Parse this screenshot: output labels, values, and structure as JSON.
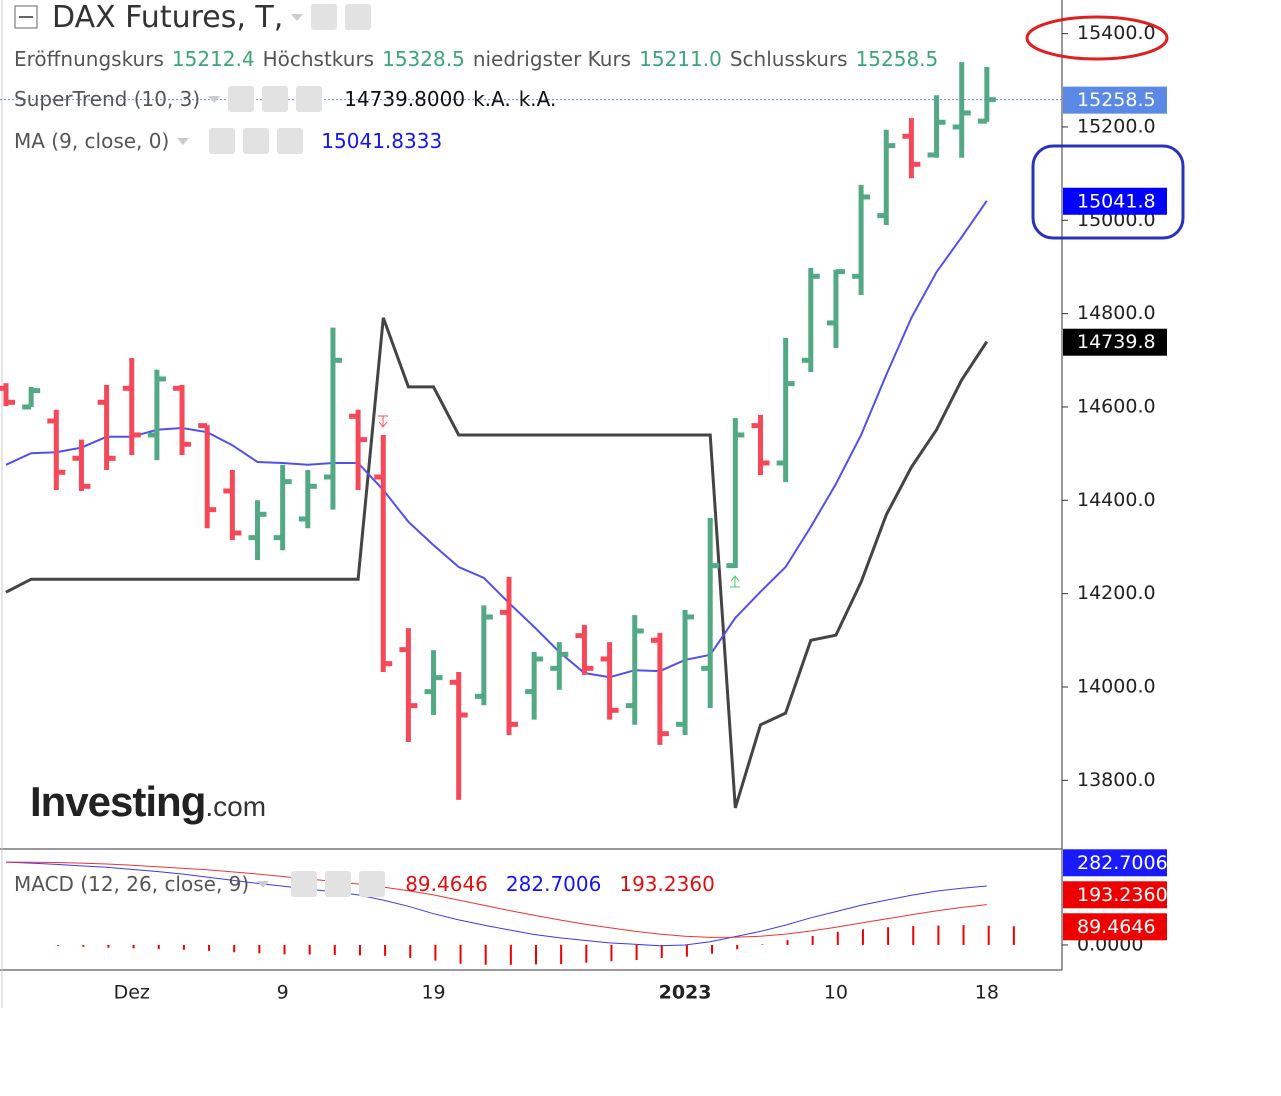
{
  "header": {
    "title": "DAX Futures, T,"
  },
  "watermark": [
    "Investing",
    ".com"
  ],
  "chart_data": [
    {
      "type": "ohlc",
      "categories": [
        null,
        null,
        null,
        null,
        null,
        "Dez",
        null,
        null,
        null,
        null,
        null,
        "9",
        null,
        null,
        null,
        null,
        null,
        "19",
        null,
        null,
        null,
        null,
        null,
        null,
        null,
        null,
        null,
        "2023",
        null,
        null,
        null,
        null,
        null,
        "10",
        null,
        null,
        null,
        null,
        null,
        "18"
      ],
      "ohlc_labels": [
        "Eröffnungskurs",
        "Höchstkurs",
        "niedrigster Kurs",
        "Schlusskurs"
      ],
      "open": [
        14640,
        14600,
        14570,
        14490,
        14610,
        14640,
        14540,
        14640,
        14560,
        14420,
        14320,
        14320,
        14360,
        14450,
        14580,
        14450,
        14080,
        13990,
        14010,
        13980,
        14160,
        13990,
        14040,
        14110,
        14060,
        13960,
        14100,
        13920,
        14040,
        14260,
        14560,
        14480,
        14700,
        14780,
        14880,
        15010,
        15180,
        15140,
        15200,
        15212.4
      ],
      "high": [
        14651,
        14643,
        14594,
        14530,
        14647,
        14705,
        14680,
        14647,
        14561,
        14465,
        14400,
        14476,
        14465,
        14770,
        14594,
        14540,
        14126,
        14079,
        14032,
        14175,
        14236,
        14075,
        14096,
        14133,
        14096,
        14154,
        14116,
        14165,
        14362,
        14576,
        14583,
        14748,
        14898,
        14894,
        15076,
        15194,
        15219,
        15268,
        15339,
        15328.5
      ],
      "low": [
        14602,
        14600,
        14422,
        14420,
        14465,
        14497,
        14486,
        14497,
        14340,
        14315,
        14272,
        14293,
        14340,
        14380,
        14422,
        14032,
        13882,
        13940,
        13758,
        13961,
        13897,
        13930,
        13994,
        14026,
        13930,
        13919,
        13876,
        13897,
        13955,
        14255,
        14454,
        14439,
        14675,
        14726,
        14840,
        14990,
        15090,
        15134,
        15134,
        15211.0
      ],
      "low_value_label": "15211.0",
      "close": [
        14610,
        14635,
        14460,
        14430,
        14490,
        14540,
        14660,
        14520,
        14380,
        14330,
        14370,
        14440,
        14430,
        14700,
        14530,
        14050,
        13960,
        14020,
        13940,
        14150,
        13920,
        14060,
        14070,
        14040,
        13950,
        14120,
        13900,
        14150,
        14260,
        14540,
        14480,
        14650,
        14880,
        14890,
        15050,
        15160,
        15120,
        15210,
        15230,
        15258.5
      ],
      "up_color": "#52a983",
      "down_color": "#f5495a",
      "close_badge_color": "#5b8ae6",
      "indicators": [
        {
          "name": "SuperTrend (10, 3)",
          "color": "#444444",
          "badge_color": "#000000",
          "values": [
            14203,
            14231,
            14231,
            14231,
            14231,
            14231,
            14231,
            14231,
            14231,
            14231,
            14231,
            14231,
            14231,
            14231,
            14231,
            14791,
            14643,
            14643,
            14540,
            14540,
            14540,
            14540,
            14540,
            14540,
            14540,
            14540,
            14540,
            14540,
            14540,
            13741,
            13919,
            13944,
            14100,
            14111,
            14225,
            14369,
            14471,
            14551,
            14658,
            14739.8
          ],
          "readout_label": "14739.8000",
          "missing_labels": [
            "k.A.",
            "k.A."
          ]
        },
        {
          "name": "MA (9, close, 0)",
          "color": "#5050ee",
          "badge_color": "#0000ff",
          "values": [
            14476,
            14501,
            14503,
            14513,
            14536,
            14536,
            14551,
            14555,
            14546,
            14518,
            14482,
            14480,
            14476,
            14480,
            14480,
            14422,
            14354,
            14304,
            14257,
            14234,
            14180,
            14129,
            14075,
            14030,
            14021,
            14036,
            14034,
            14058,
            14069,
            14148,
            14204,
            14257,
            14343,
            14435,
            14540,
            14669,
            14791,
            14889,
            14964,
            15041.8333
          ],
          "badge": {
            "value": 15041.8333,
            "label": "15041.8"
          }
        }
      ],
      "ylim": [
        13655,
        15472
      ],
      "yticks": [
        {
          "value": 13800,
          "label": "13800.0"
        },
        {
          "value": 14000,
          "label": "14000.0"
        },
        {
          "value": 14200,
          "label": "14200.0"
        },
        {
          "value": 14400,
          "label": "14400.0"
        },
        {
          "value": 14600,
          "label": "14600.0"
        },
        {
          "value": 14800,
          "label": "14800.0"
        },
        {
          "value": 15000,
          "label": "15000.0"
        },
        {
          "value": 15200,
          "label": "15200.0"
        },
        {
          "value": 15400,
          "label": "15400.0"
        }
      ]
    },
    {
      "type": "macd",
      "name": "MACD (12, 26, close, 9)",
      "series": [
        {
          "color": "#ee0000",
          "badge_color": "#ee0000",
          "values": [
            0,
            -4,
            -9,
            -13,
            -16,
            -20,
            -23,
            -28,
            -35,
            -40,
            -45,
            -46,
            -48,
            -50,
            -52,
            -62,
            -75,
            -90,
            -95,
            -95,
            -93,
            -92,
            -85,
            -78,
            -72,
            -63,
            -56,
            -42,
            -21,
            3,
            23,
            43,
            63,
            75,
            85,
            90,
            93,
            95,
            92,
            89.4646
          ]
        },
        {
          "color": "#3a3aee",
          "badge_color": "#1a1aff",
          "values": [
            397,
            392,
            386,
            379,
            372,
            362,
            352,
            340,
            325,
            310,
            295,
            282,
            268,
            255,
            240,
            215,
            185,
            150,
            120,
            95,
            72,
            50,
            35,
            22,
            10,
            3,
            -4,
            0,
            15,
            40,
            65,
            95,
            130,
            160,
            190,
            215,
            238,
            258,
            272,
            282.7006
          ]
        },
        {
          "color": "#ee3333",
          "badge_color": "#ee0000",
          "values": [
            397,
            396,
            395,
            392,
            388,
            382,
            375,
            368,
            360,
            350,
            340,
            328,
            316,
            305,
            292,
            277,
            260,
            240,
            215,
            190,
            165,
            142,
            120,
            100,
            82,
            66,
            52,
            42,
            36,
            37,
            42,
            52,
            67,
            85,
            105,
            125,
            145,
            163,
            180,
            193.236
          ],
          "value_label": "193.2360"
        }
      ],
      "ylim": [
        -120,
        455
      ],
      "yticks": [
        {
          "value": 0,
          "label": "0.0000"
        }
      ]
    }
  ]
}
